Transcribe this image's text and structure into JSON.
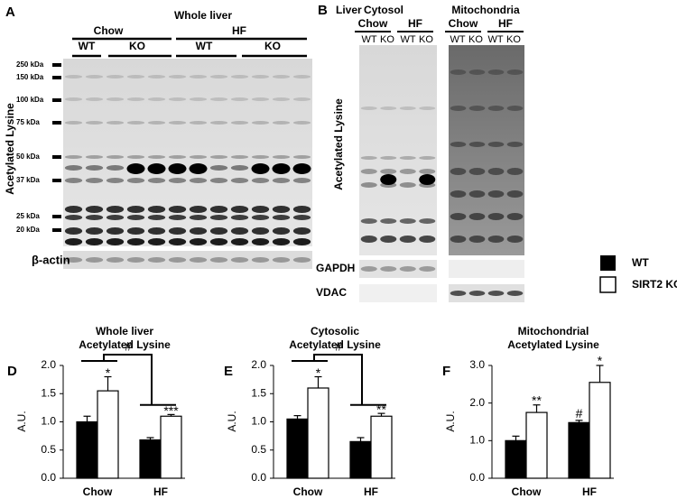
{
  "panel_a": {
    "letter": "A",
    "title": "Whole liver",
    "groups": [
      "Chow",
      "HF"
    ],
    "lanes": [
      "WT",
      "KO",
      "WT",
      "KO"
    ],
    "y_label": "Acetylated Lysine",
    "markers": [
      "250 kDa",
      "150 kDa",
      "100 kDa",
      "75 kDa",
      "50 kDa",
      "37 kDa",
      "25 kDa",
      "20 kDa"
    ],
    "loading": "β-actin"
  },
  "panel_b": {
    "letter": "B",
    "tissue": "Liver",
    "fractions": [
      "Cytosol",
      "Mitochondria"
    ],
    "groups": [
      "Chow",
      "HF",
      "Chow",
      "HF"
    ],
    "lanes": [
      "WT",
      "KO",
      "WT",
      "KO",
      "WT",
      "KO",
      "WT",
      "KO"
    ],
    "y_label": "Acetylated Lysine",
    "loading": [
      "GAPDH",
      "VDAC"
    ]
  },
  "chart_data": [
    {
      "type": "bar",
      "panel": "D",
      "title": [
        "Whole liver",
        "Acetylated Lysine"
      ],
      "y_label": "A.U.",
      "categories": [
        "Chow",
        "HF"
      ],
      "series": [
        {
          "name": "WT",
          "color": "#000000",
          "values": [
            1.0,
            0.68
          ],
          "errors": [
            0.1,
            0.04
          ]
        },
        {
          "name": "SIRT2 KO",
          "color": "#ffffff",
          "values": [
            1.55,
            1.1
          ],
          "errors": [
            0.25,
            0.03
          ]
        }
      ],
      "ylim": [
        0,
        2
      ],
      "yticks": [
        {
          "value": 0,
          "label": "0.0"
        },
        {
          "value": 0.5,
          "label": "0.5"
        },
        {
          "value": 1,
          "label": "1.0"
        },
        {
          "value": 1.5,
          "label": "1.5"
        },
        {
          "value": 2,
          "label": "2.0"
        }
      ],
      "annotations": [
        "*",
        "***",
        "#"
      ]
    },
    {
      "type": "bar",
      "panel": "E",
      "title": [
        "Cytosolic",
        "Acetylated Lysine"
      ],
      "y_label": "A.U.",
      "categories": [
        "Chow",
        "HF"
      ],
      "series": [
        {
          "name": "WT",
          "color": "#000000",
          "values": [
            1.05,
            0.65
          ],
          "errors": [
            0.06,
            0.07
          ]
        },
        {
          "name": "SIRT2 KO",
          "color": "#ffffff",
          "values": [
            1.6,
            1.1
          ],
          "errors": [
            0.2,
            0.05
          ]
        }
      ],
      "ylim": [
        0,
        2
      ],
      "yticks": [
        {
          "value": 0,
          "label": "0.0"
        },
        {
          "value": 0.5,
          "label": "0.5"
        },
        {
          "value": 1,
          "label": "1.0"
        },
        {
          "value": 1.5,
          "label": "1.5"
        },
        {
          "value": 2,
          "label": "2.0"
        }
      ],
      "annotations": [
        "*",
        "**",
        "#"
      ]
    },
    {
      "type": "bar",
      "panel": "F",
      "title": [
        "Mitochondrial",
        "Acetylated Lysine"
      ],
      "y_label": "A.U.",
      "categories": [
        "Chow",
        "HF"
      ],
      "series": [
        {
          "name": "WT",
          "color": "#000000",
          "values": [
            1.0,
            1.48
          ],
          "errors": [
            0.12,
            0.06
          ]
        },
        {
          "name": "SIRT2 KO",
          "color": "#ffffff",
          "values": [
            1.75,
            2.55
          ],
          "errors": [
            0.2,
            0.45
          ]
        }
      ],
      "ylim": [
        0,
        3
      ],
      "yticks": [
        {
          "value": 0,
          "label": "0.0"
        },
        {
          "value": 1,
          "label": "1.0"
        },
        {
          "value": 2,
          "label": "2.0"
        },
        {
          "value": 3,
          "label": "3.0"
        }
      ],
      "annotations": [
        "**",
        "*",
        "#"
      ]
    }
  ]
}
